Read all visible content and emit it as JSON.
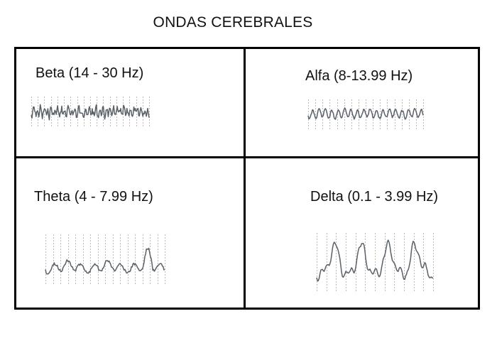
{
  "title": "ONDAS CEREBRALES",
  "panels": [
    {
      "id": "beta",
      "label": "Beta (14 - 30 Hz)"
    },
    {
      "id": "alfa",
      "label": "Alfa (8-13.99 Hz)"
    },
    {
      "id": "theta",
      "label": "Theta (4 - 7.99 Hz)"
    },
    {
      "id": "delta",
      "label": "Delta (0.1 - 3.99 Hz)"
    }
  ],
  "colors": {
    "border": "#000000",
    "wave": "#5a6068",
    "ticks": "#bbbbbb"
  }
}
